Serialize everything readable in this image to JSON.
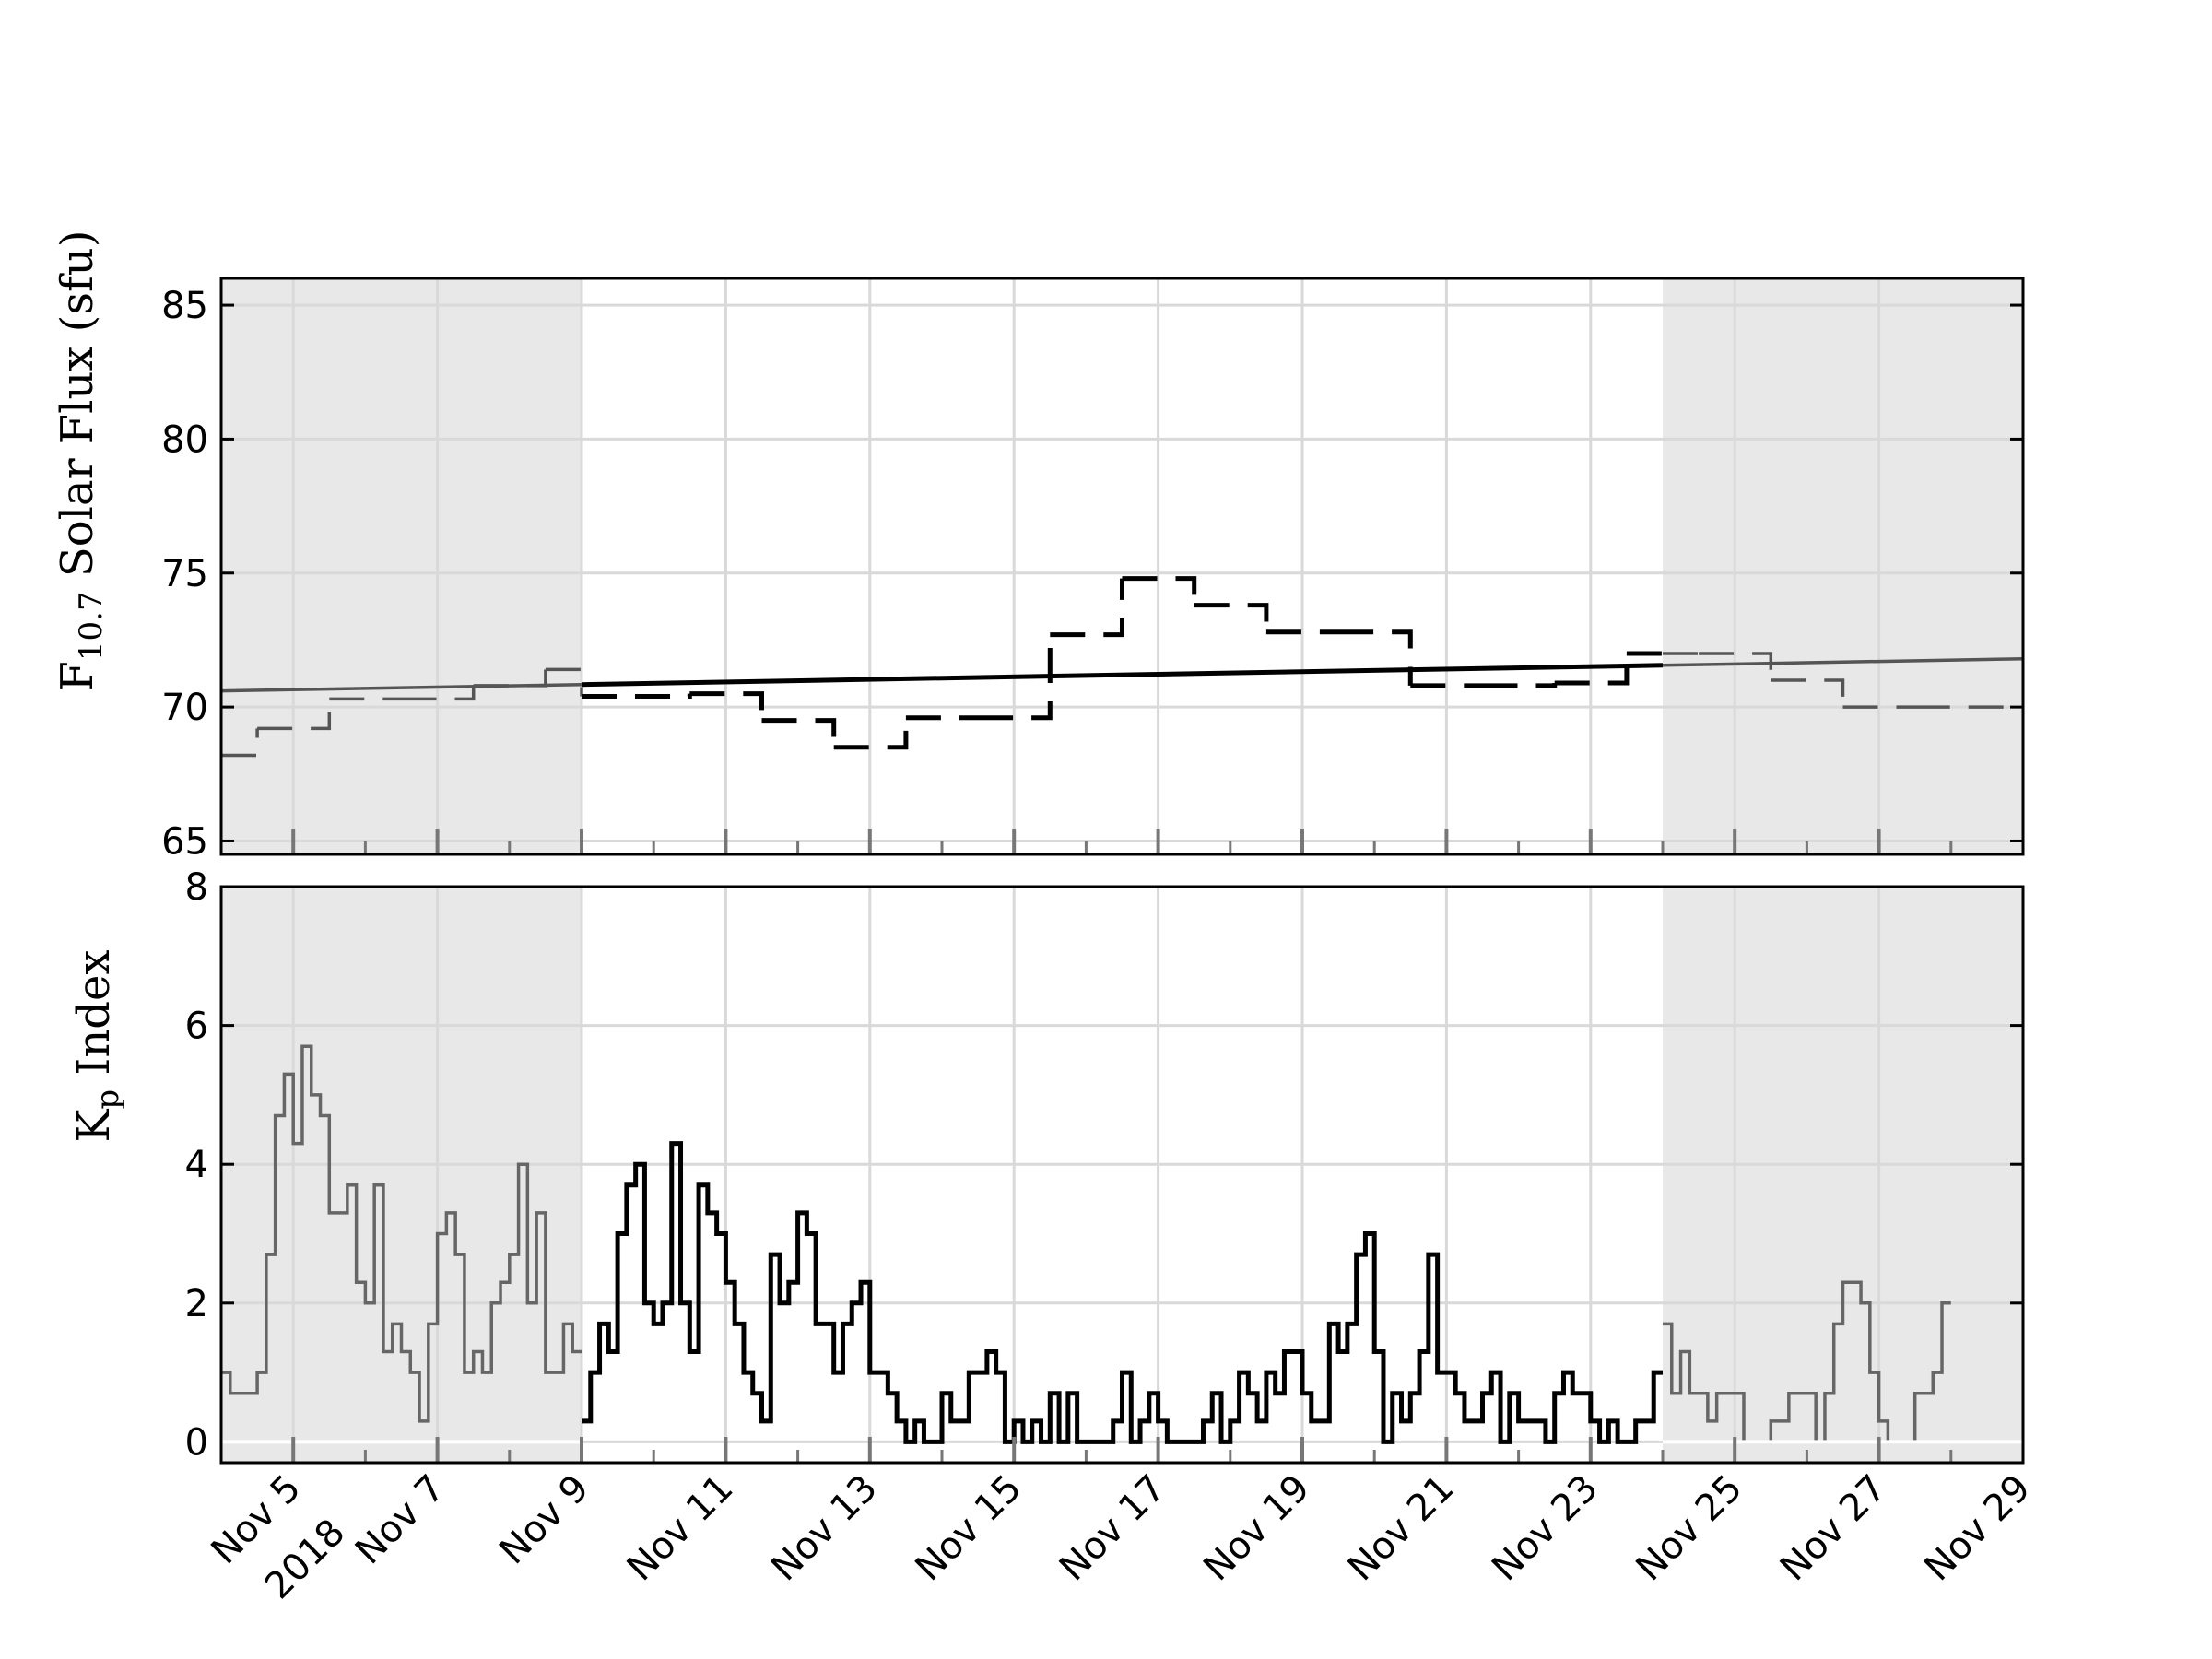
{
  "chart_data": [
    {
      "type": "line",
      "ylabel_main": "F",
      "ylabel_sub": "10.7",
      "ylabel_rest": " Solar Flux (sfu)",
      "ylim": [
        64.5,
        86
      ],
      "yticks": [
        "65",
        "70",
        "75",
        "80",
        "85"
      ],
      "x_range": [
        "2018-11-04",
        "2018-11-29"
      ],
      "shaded_regions": [
        [
          "2018-11-04",
          "2018-11-09"
        ],
        [
          "2018-11-24",
          "2018-11-29"
        ]
      ],
      "grid": true,
      "series": [
        {
          "style": "dashed-step",
          "points": [
            [
              "2018-11-04T00:00",
              68.2
            ],
            [
              "2018-11-04T12:00",
              69.2
            ],
            [
              "2018-11-05T12:00",
              70.3
            ],
            [
              "2018-11-06T12:00",
              70.3
            ],
            [
              "2018-11-07T12:00",
              70.8
            ],
            [
              "2018-11-08T12:00",
              71.4
            ],
            [
              "2018-11-09T00:00",
              70.4
            ],
            [
              "2018-11-10T12:00",
              70.5
            ],
            [
              "2018-11-11T12:00",
              69.5
            ],
            [
              "2018-11-12T12:00",
              68.5
            ],
            [
              "2018-11-13T12:00",
              69.6
            ],
            [
              "2018-11-14T12:00",
              69.6
            ],
            [
              "2018-11-15T12:00",
              72.7
            ],
            [
              "2018-11-16T12:00",
              74.8
            ],
            [
              "2018-11-17T12:00",
              73.8
            ],
            [
              "2018-11-18T12:00",
              72.8
            ],
            [
              "2018-11-19T12:00",
              72.8
            ],
            [
              "2018-11-20T12:00",
              70.8
            ],
            [
              "2018-11-21T12:00",
              70.8
            ],
            [
              "2018-11-22T12:00",
              70.9
            ],
            [
              "2018-11-23T12:00",
              72.0
            ],
            [
              "2018-11-24T12:00",
              72.0
            ],
            [
              "2018-11-25T12:00",
              71.0
            ],
            [
              "2018-11-26T12:00",
              70.0
            ],
            [
              "2018-11-27T12:00",
              70.0
            ],
            [
              "2018-11-29T00:00",
              70.0
            ]
          ]
        },
        {
          "style": "solid-trend",
          "points": [
            [
              "2018-11-04",
              70.6
            ],
            [
              "2018-11-29",
              71.8
            ]
          ]
        }
      ]
    },
    {
      "type": "line",
      "ylabel_main": "K",
      "ylabel_sub": "p",
      "ylabel_rest": " Index",
      "ylim": [
        -0.3,
        8
      ],
      "yticks": [
        "0",
        "2",
        "4",
        "6",
        "8"
      ],
      "x_range": [
        "2018-11-04",
        "2018-11-29"
      ],
      "xticks": [
        {
          "date": "2018-11-05",
          "label": "Nov 5",
          "label2": "2018"
        },
        {
          "date": "2018-11-07",
          "label": "Nov 7"
        },
        {
          "date": "2018-11-09",
          "label": "Nov 9"
        },
        {
          "date": "2018-11-11",
          "label": "Nov 11"
        },
        {
          "date": "2018-11-13",
          "label": "Nov 13"
        },
        {
          "date": "2018-11-15",
          "label": "Nov 15"
        },
        {
          "date": "2018-11-17",
          "label": "Nov 17"
        },
        {
          "date": "2018-11-19",
          "label": "Nov 19"
        },
        {
          "date": "2018-11-21",
          "label": "Nov 21"
        },
        {
          "date": "2018-11-23",
          "label": "Nov 23"
        },
        {
          "date": "2018-11-25",
          "label": "Nov 25"
        },
        {
          "date": "2018-11-27",
          "label": "Nov 27"
        },
        {
          "date": "2018-11-29",
          "label": "Nov 29"
        }
      ],
      "shaded_regions": [
        [
          "2018-11-04",
          "2018-11-09"
        ],
        [
          "2018-11-24",
          "2018-11-29"
        ]
      ],
      "grid": true,
      "series": [
        {
          "style": "solid-step",
          "start": "2018-11-04T00:00",
          "interval_hours": 3,
          "values": [
            1.0,
            0.7,
            0.7,
            0.7,
            1.0,
            2.7,
            4.7,
            5.3,
            4.3,
            5.7,
            5.0,
            4.7,
            3.3,
            3.3,
            3.7,
            2.3,
            2.0,
            3.7,
            1.3,
            1.7,
            1.3,
            1.0,
            0.3,
            1.7,
            3.0,
            3.3,
            2.7,
            1.0,
            1.3,
            1.0,
            2.0,
            2.3,
            2.7,
            4.0,
            2.0,
            3.3,
            1.0,
            1.0,
            1.7,
            1.3,
            0.3,
            1.0,
            1.7,
            1.3,
            3.0,
            3.7,
            4.0,
            2.0,
            1.7,
            2.0,
            4.3,
            2.0,
            1.3,
            3.7,
            3.3,
            3.0,
            2.3,
            1.7,
            1.0,
            0.7,
            0.3,
            2.7,
            2.0,
            2.3,
            3.3,
            3.0,
            1.7,
            1.7,
            1.0,
            1.7,
            2.0,
            2.3,
            1.0,
            1.0,
            0.7,
            0.3,
            0.0,
            0.3,
            0.0,
            0.0,
            0.7,
            0.3,
            0.3,
            1.0,
            1.0,
            1.3,
            1.0,
            0.0,
            0.3,
            0.0,
            0.3,
            0.0,
            0.7,
            0.0,
            0.7,
            0.0,
            0.0,
            0.0,
            0.0,
            0.3,
            1.0,
            0.0,
            0.3,
            0.7,
            0.3,
            0.0,
            0.0,
            0.0,
            0.0,
            0.3,
            0.7,
            0.0,
            0.3,
            1.0,
            0.7,
            0.3,
            1.0,
            0.7,
            1.3,
            1.3,
            0.7,
            0.3,
            0.3,
            1.7,
            1.3,
            1.7,
            2.7,
            3.0,
            1.3,
            0.0,
            0.7,
            0.3,
            0.7,
            1.3,
            2.7,
            1.0,
            1.0,
            0.7,
            0.3,
            0.3,
            0.7,
            1.0,
            0.0,
            0.7,
            0.3,
            0.3,
            0.3,
            0.0,
            0.7,
            1.0,
            0.7,
            0.7,
            0.3,
            0.0,
            0.3,
            0.0,
            0.0,
            0.3,
            0.3,
            1.0,
            1.7,
            0.7,
            1.3,
            0.7,
            0.7,
            0.3,
            0.7,
            0.7,
            0.7,
            0.0,
            0.0,
            0.0,
            0.3,
            0.3,
            0.7,
            0.7,
            0.7,
            0.0,
            0.7,
            1.7,
            2.3,
            2.3,
            2.0,
            1.0,
            0.3,
            0.0,
            0.0,
            0.0,
            0.7,
            0.7,
            1.0,
            2.0
          ]
        }
      ]
    }
  ]
}
